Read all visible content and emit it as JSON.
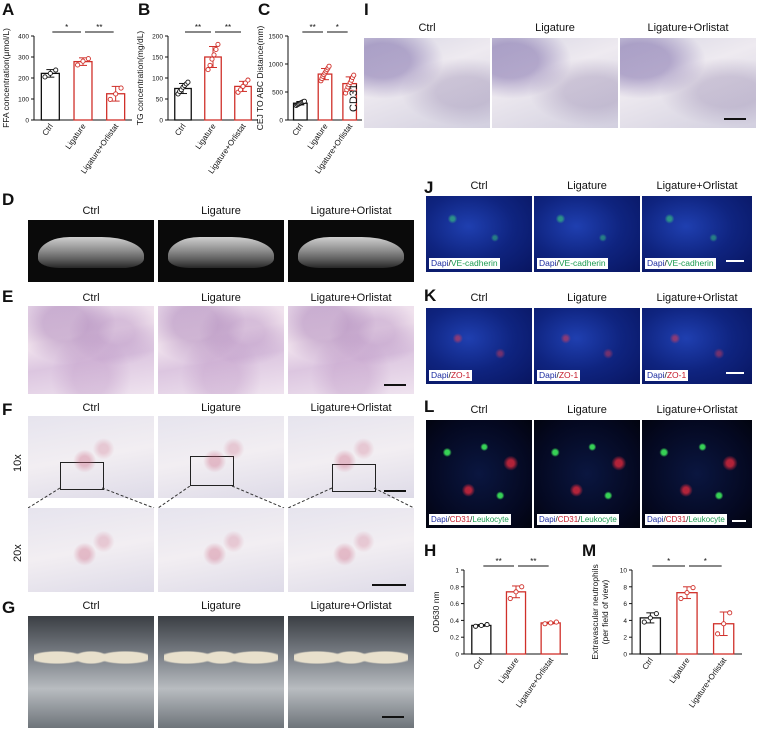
{
  "panels": {
    "A": "A",
    "B": "B",
    "C": "C",
    "D": "D",
    "E": "E",
    "F": "F",
    "G": "G",
    "H": "H",
    "I": "I",
    "J": "J",
    "K": "K",
    "L": "L",
    "M": "M"
  },
  "groups": [
    "Ctrl",
    "Ligature",
    "Ligature+Orlistat"
  ],
  "panel_I": {
    "side_label": "CD31"
  },
  "panel_F": {
    "row_labels": [
      "10x",
      "20x"
    ]
  },
  "panel_J": {
    "stain": {
      "a": "Dapi",
      "sep": "/",
      "b": "VE-cadherin"
    }
  },
  "panel_K": {
    "stain": {
      "a": "Dapi",
      "sep": "/",
      "b": "ZO-1"
    }
  },
  "panel_L": {
    "stain": {
      "a": "Dapi",
      "sep": "/",
      "b": "CD31",
      "sep2": "/",
      "c": "Leukocyte"
    }
  },
  "colors": {
    "ctrl": "#111111",
    "ligature": "#d0302a",
    "orlistat": "#d0302a"
  },
  "chart_data": [
    {
      "id": "A",
      "type": "bar",
      "categories": [
        "Ctrl",
        "Ligature",
        "Ligature+Orlistat"
      ],
      "values": [
        222,
        278,
        125
      ],
      "errors": [
        18,
        18,
        35
      ],
      "points": [
        [
          205,
          222,
          238
        ],
        [
          262,
          280,
          292
        ],
        [
          98,
          124,
          152
        ]
      ],
      "ylabel": "FFA concentration(μmol/L)",
      "ylim": [
        0,
        400
      ],
      "yticks": [
        0,
        100,
        200,
        300,
        400
      ],
      "significance": [
        {
          "from": 0,
          "to": 1,
          "label": "*"
        },
        {
          "from": 1,
          "to": 2,
          "label": "**"
        }
      ]
    },
    {
      "id": "B",
      "type": "bar",
      "categories": [
        "Ctrl",
        "Ligature",
        "Ligature+Orlistat"
      ],
      "values": [
        75,
        150,
        80
      ],
      "errors": [
        12,
        25,
        12
      ],
      "points": [
        [
          62,
          68,
          72,
          78,
          82,
          86,
          90
        ],
        [
          120,
          130,
          145,
          155,
          168,
          180
        ],
        [
          66,
          72,
          80,
          88,
          95
        ]
      ],
      "ylabel": "TG concentration(mg/dL)",
      "ylim": [
        0,
        200
      ],
      "yticks": [
        0,
        50,
        100,
        150,
        200
      ],
      "significance": [
        {
          "from": 0,
          "to": 1,
          "label": "**"
        },
        {
          "from": 1,
          "to": 2,
          "label": "**"
        }
      ]
    },
    {
      "id": "C",
      "type": "bar",
      "categories": [
        "Ctrl",
        "Ligature",
        "Ligature+Orlistat"
      ],
      "values": [
        300,
        820,
        650
      ],
      "errors": [
        30,
        100,
        120
      ],
      "points": [
        [
          260,
          275,
          285,
          295,
          305,
          315,
          325,
          335
        ],
        [
          700,
          740,
          780,
          810,
          840,
          870,
          900,
          930,
          960
        ],
        [
          480,
          540,
          590,
          630,
          670,
          710,
          760,
          800
        ]
      ],
      "ylabel": "CEJ TO ABC Distance(mm)",
      "ylim": [
        0,
        1500
      ],
      "yticks": [
        0,
        500,
        1000,
        1500
      ],
      "significance": [
        {
          "from": 0,
          "to": 1,
          "label": "**"
        },
        {
          "from": 1,
          "to": 2,
          "label": "*"
        }
      ]
    },
    {
      "id": "H",
      "type": "bar",
      "categories": [
        "Ctrl",
        "Ligature",
        "Ligature+Orlistat"
      ],
      "values": [
        0.34,
        0.74,
        0.37
      ],
      "errors": [
        0.01,
        0.07,
        0.01
      ],
      "points": [
        [
          0.33,
          0.34,
          0.35
        ],
        [
          0.66,
          0.74,
          0.8
        ],
        [
          0.36,
          0.37,
          0.38
        ]
      ],
      "ylabel": "OD630 nm",
      "ylim": [
        0,
        1.0
      ],
      "yticks": [
        0.0,
        0.2,
        0.4,
        0.6,
        0.8,
        1.0
      ],
      "significance": [
        {
          "from": 0,
          "to": 1,
          "label": "**"
        },
        {
          "from": 1,
          "to": 2,
          "label": "**"
        }
      ]
    },
    {
      "id": "M",
      "type": "bar",
      "categories": [
        "Ctrl",
        "Ligature",
        "Ligature+Orlistat"
      ],
      "values": [
        4.3,
        7.3,
        3.6
      ],
      "errors": [
        0.6,
        0.7,
        1.4
      ],
      "points": [
        [
          3.8,
          4.3,
          4.8
        ],
        [
          6.6,
          7.3,
          7.9
        ],
        [
          2.4,
          3.6,
          4.9
        ]
      ],
      "ylabel": "Extravascular neutrophils\n(per field of view)",
      "ylim": [
        0,
        10
      ],
      "yticks": [
        0,
        2,
        4,
        6,
        8,
        10
      ],
      "significance": [
        {
          "from": 0,
          "to": 1,
          "label": "*"
        },
        {
          "from": 1,
          "to": 2,
          "label": "*"
        }
      ]
    }
  ]
}
